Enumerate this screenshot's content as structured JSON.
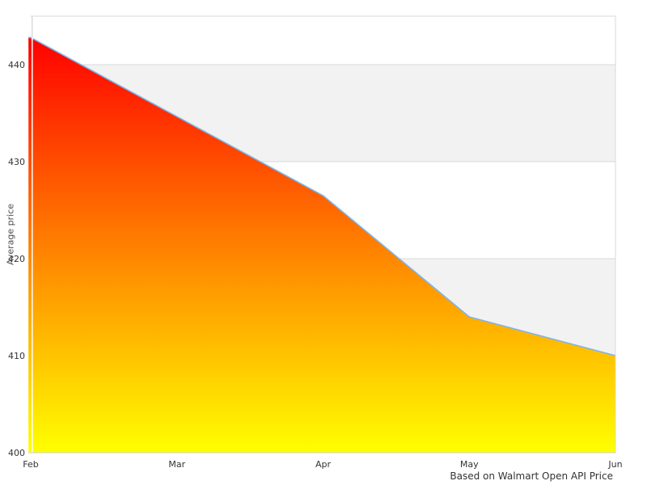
{
  "caption": "Based on Walmart Open API Price",
  "chart_data": {
    "type": "area",
    "categories": [
      "Feb",
      "Mar",
      "Apr",
      "May",
      "Jun"
    ],
    "values": [
      442.8,
      434.65,
      426.5,
      414,
      410
    ],
    "title": "",
    "xlabel": "",
    "ylabel": "Average price",
    "ylim": [
      400,
      445
    ],
    "yticks": [
      400,
      410,
      420,
      430,
      440
    ],
    "grid": "horizontal alternating bands",
    "legend": "none",
    "colors": {
      "line": "#7cb5ec",
      "fill_top": "#ff0000",
      "fill_bottom": "#ffff00",
      "band": "#f2f2f2",
      "gridline": "#d8d8d8",
      "axis_line": "#cccccc",
      "label": "#333333"
    }
  }
}
